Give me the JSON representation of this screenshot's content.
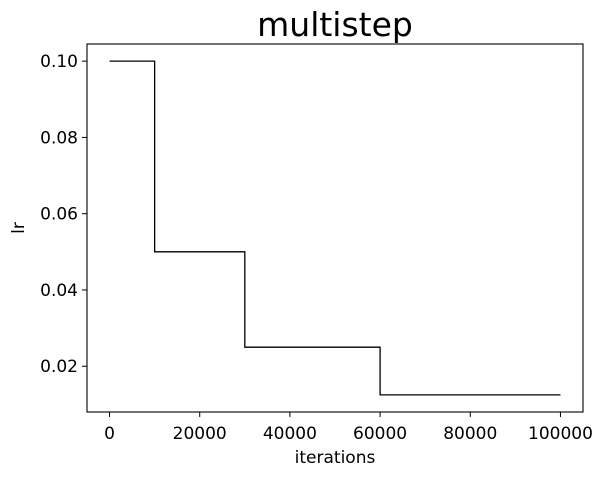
{
  "chart_data": {
    "type": "line",
    "title": "multistep",
    "xlabel": "iterations",
    "ylabel": "lr",
    "xlim": [
      -5000,
      105000
    ],
    "ylim": [
      0.008,
      0.1045
    ],
    "xticks": [
      0,
      20000,
      40000,
      60000,
      80000,
      100000
    ],
    "xtick_labels": [
      "0",
      "20000",
      "40000",
      "60000",
      "80000",
      "100000"
    ],
    "yticks": [
      0.02,
      0.04,
      0.06,
      0.08,
      0.1
    ],
    "ytick_labels": [
      "0.02",
      "0.04",
      "0.06",
      "0.08",
      "0.10"
    ],
    "grid": false,
    "series": [
      {
        "step": "post",
        "color": "#000000",
        "x": [
          0,
          10000,
          30000,
          60000,
          100000
        ],
        "y": [
          0.1,
          0.05,
          0.025,
          0.0125,
          0.0125
        ]
      }
    ]
  }
}
